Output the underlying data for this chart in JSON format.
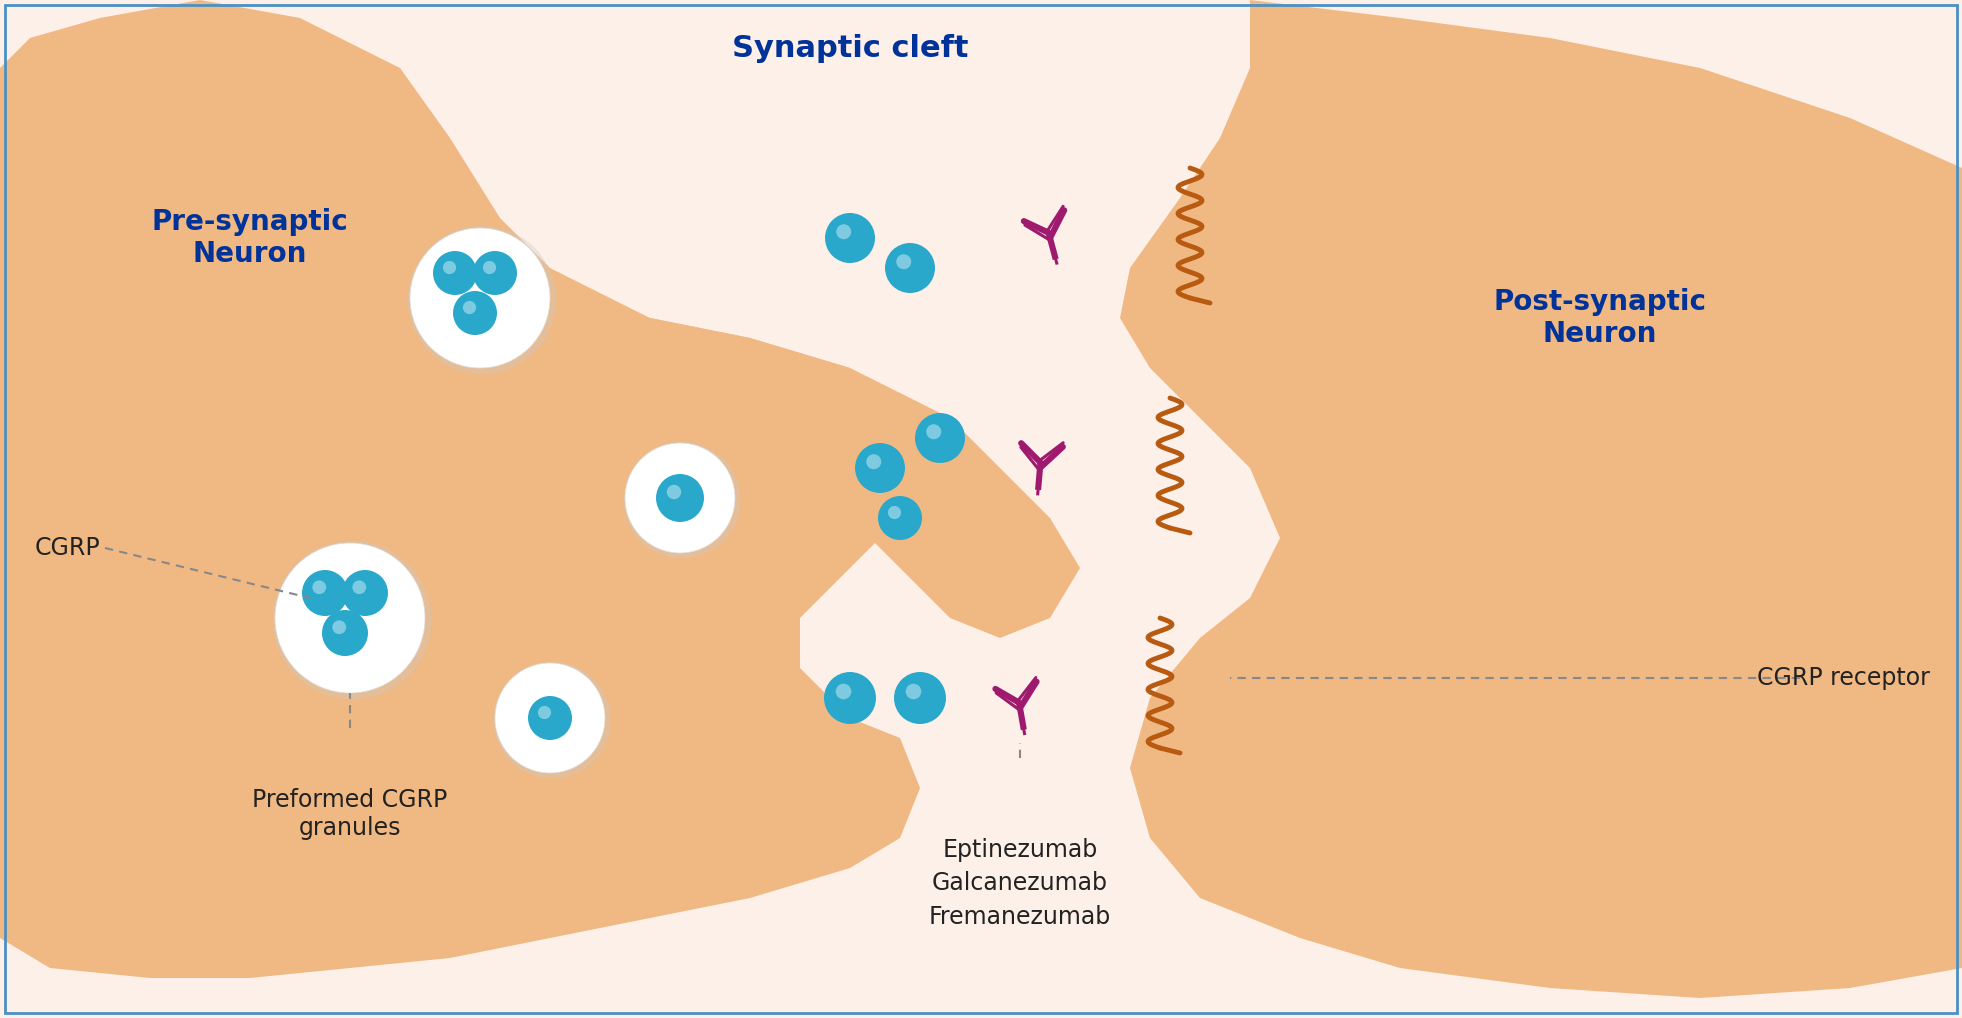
{
  "bg_color": "#fdf0e8",
  "neuron_color": "#f0b882",
  "neuron_edge": "#e8a060",
  "white_vesicle": "#ffffff",
  "cgrp_dot_color": "#29a8cc",
  "antibody_color": "#9e1a6e",
  "receptor_color": "#b85a10",
  "text_dark_blue": "#003399",
  "text_black": "#222222",
  "label_cgrp": "CGRP",
  "label_preformed": "Preformed CGRP\ngranules",
  "label_drugs": "Eptinezumab\nGalcanezumab\nFremanezumab",
  "label_synaptic": "Synaptic cleft",
  "label_pre": "Pre-synaptic\nNeuron",
  "label_post": "Post-synaptic\nNeuron",
  "label_receptor": "CGRP receptor"
}
